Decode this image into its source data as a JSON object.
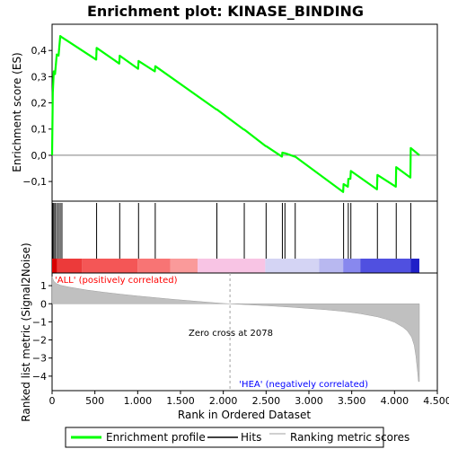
{
  "chart_data": {
    "type": "line",
    "title": "Enrichment plot: KINASE_BINDING",
    "xlabel": "Rank in Ordered Dataset",
    "es_panel": {
      "ylabel": "Enrichment score (ES)",
      "ylim": [
        -0.175,
        0.5
      ],
      "yticks": [
        -0.1,
        0.0,
        0.1,
        0.2,
        0.3,
        0.4
      ],
      "ytick_labels": [
        "−0,1",
        "0,0",
        "0,1",
        "0,2",
        "0,3",
        "0,4"
      ],
      "zero_line": 0.0
    },
    "metric_panel": {
      "ylabel": "Ranked list metric (Signal2Noise)",
      "ylim": [
        -4.8,
        1.7
      ],
      "yticks": [
        -4,
        -3,
        -2,
        -1,
        0,
        1
      ],
      "ytick_labels": [
        "−4",
        "−3",
        "−2",
        "−1",
        "0",
        "1"
      ]
    },
    "xlim": [
      0,
      4500
    ],
    "xticks": [
      0,
      500,
      1000,
      1500,
      2000,
      2500,
      3000,
      3500,
      4000,
      4500
    ],
    "xtick_labels": [
      "0",
      "500",
      "1.000",
      "1.500",
      "2.000",
      "2.500",
      "3.000",
      "3.500",
      "4.000",
      "4.500"
    ],
    "n_genes": 4290,
    "zero_cross": 2078,
    "hits": [
      8,
      20,
      35,
      55,
      75,
      95,
      115,
      520,
      790,
      1010,
      1205,
      1925,
      2245,
      2500,
      2690,
      2720,
      2840,
      3405,
      3460,
      3490,
      3800,
      4020,
      4190
    ],
    "series": [
      {
        "name": "Enrichment profile",
        "color": "#00ff00",
        "x": [
          0,
          8,
          20,
          35,
          55,
          75,
          95,
          115,
          515,
          520,
          785,
          790,
          1005,
          1010,
          1200,
          1205,
          1920,
          1925,
          2240,
          2245,
          2495,
          2500,
          2685,
          2690,
          2715,
          2720,
          2835,
          2840,
          3400,
          3405,
          3455,
          3460,
          3485,
          3490,
          3795,
          3800,
          4015,
          4020,
          4185,
          4190,
          4290
        ],
        "values": [
          0.0,
          0.24,
          0.32,
          0.31,
          0.385,
          0.38,
          0.455,
          0.45,
          0.365,
          0.41,
          0.35,
          0.38,
          0.33,
          0.36,
          0.32,
          0.34,
          0.175,
          0.175,
          0.098,
          0.098,
          0.035,
          0.035,
          -0.005,
          0.01,
          0.008,
          0.008,
          -0.005,
          -0.005,
          -0.14,
          -0.11,
          -0.12,
          -0.09,
          -0.09,
          -0.06,
          -0.13,
          -0.075,
          -0.12,
          -0.045,
          -0.085,
          0.028,
          0.0
        ]
      },
      {
        "name": "Hits",
        "color": "#000000"
      },
      {
        "name": "Ranking metric scores",
        "color": "#c0c0c0",
        "x": [
          0,
          20,
          50,
          100,
          200,
          300,
          400,
          600,
          800,
          1000,
          1200,
          1400,
          1600,
          1800,
          2000,
          2078,
          2200,
          2400,
          2600,
          2800,
          3000,
          3200,
          3400,
          3600,
          3800,
          3900,
          4000,
          4100,
          4150,
          4200,
          4230,
          4250,
          4270,
          4280,
          4290
        ],
        "values": [
          1.5,
          1.25,
          1.12,
          1.02,
          0.92,
          0.84,
          0.76,
          0.64,
          0.53,
          0.43,
          0.34,
          0.25,
          0.17,
          0.09,
          0.02,
          0.0,
          -0.03,
          -0.08,
          -0.13,
          -0.19,
          -0.26,
          -0.33,
          -0.42,
          -0.55,
          -0.72,
          -0.85,
          -1.02,
          -1.3,
          -1.5,
          -1.85,
          -2.3,
          -2.9,
          -3.8,
          -4.3,
          -4.3
        ]
      }
    ],
    "annotations": {
      "pos_label": "'ALL' (positively correlated)",
      "neg_label": "'HEA' (negatively correlated)",
      "zero_cross_label": "Zero cross at 2078"
    },
    "legend": {
      "placement": "bottom",
      "entries": [
        "Enrichment profile",
        "Hits",
        "Ranking metric scores"
      ]
    },
    "colorbar_stops": [
      {
        "from": 0,
        "to": 60,
        "color": "#d80000"
      },
      {
        "from": 60,
        "to": 350,
        "color": "#ec3a3a"
      },
      {
        "from": 350,
        "to": 1000,
        "color": "#f45656"
      },
      {
        "from": 1000,
        "to": 1380,
        "color": "#f87474"
      },
      {
        "from": 1380,
        "to": 1700,
        "color": "#fa9a9a"
      },
      {
        "from": 1700,
        "to": 2490,
        "color": "#f8c4e4"
      },
      {
        "from": 2490,
        "to": 3120,
        "color": "#d4d4f4"
      },
      {
        "from": 3120,
        "to": 3400,
        "color": "#b8b8f0"
      },
      {
        "from": 3400,
        "to": 3600,
        "color": "#8888ee"
      },
      {
        "from": 3600,
        "to": 4190,
        "color": "#5050e0"
      },
      {
        "from": 4190,
        "to": 4290,
        "color": "#2020c8"
      }
    ]
  }
}
